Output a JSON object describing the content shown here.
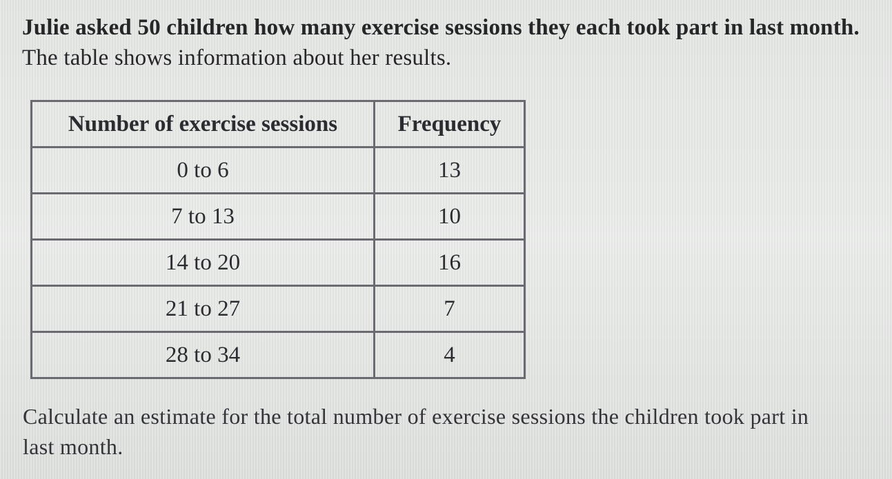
{
  "intro": {
    "line1": "Julie asked 50 children how many exercise sessions they each took part in last month.",
    "line2": "The table shows information about her results."
  },
  "table": {
    "headers": [
      "Number of exercise sessions",
      "Frequency"
    ],
    "rows": [
      [
        "0 to 6",
        "13"
      ],
      [
        "7 to 13",
        "10"
      ],
      [
        "14 to 20",
        "16"
      ],
      [
        "21 to 27",
        "7"
      ],
      [
        "28 to 34",
        "4"
      ]
    ]
  },
  "question": {
    "line1": "Calculate an estimate for the total number of exercise sessions the children took part in",
    "line2": "last month."
  }
}
